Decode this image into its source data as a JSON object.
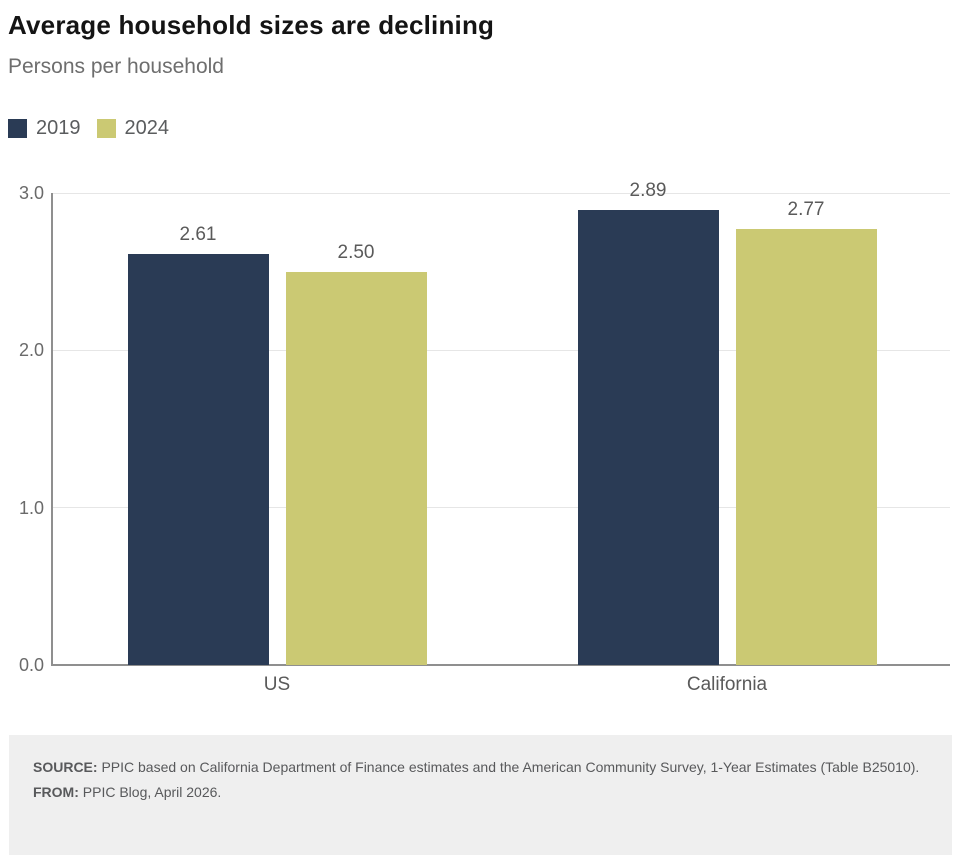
{
  "chart_data": {
    "type": "bar",
    "title": "Average household sizes are declining",
    "subtitle": "Persons per household",
    "categories": [
      "US",
      "California"
    ],
    "series": [
      {
        "name": "2019",
        "color": "#2a3b55",
        "values": [
          2.61,
          2.89
        ],
        "labels": [
          "2.61",
          "2.89"
        ]
      },
      {
        "name": "2024",
        "color": "#cbc973",
        "values": [
          2.5,
          2.77
        ],
        "labels": [
          "2.50",
          "2.77"
        ]
      }
    ],
    "ylim": [
      0,
      3.0
    ],
    "yticks": [
      "0.0",
      "1.0",
      "2.0",
      "3.0"
    ],
    "grid": true,
    "legend_position": "top-left",
    "xlabel": "",
    "ylabel": ""
  },
  "footer": {
    "source_label": "SOURCE:",
    "source_text": " PPIC based on California Department of Finance estimates and the American Community Survey, 1-Year Estimates (Table B25010).",
    "from_label": "FROM:",
    "from_text": " PPIC Blog, April 2026."
  }
}
